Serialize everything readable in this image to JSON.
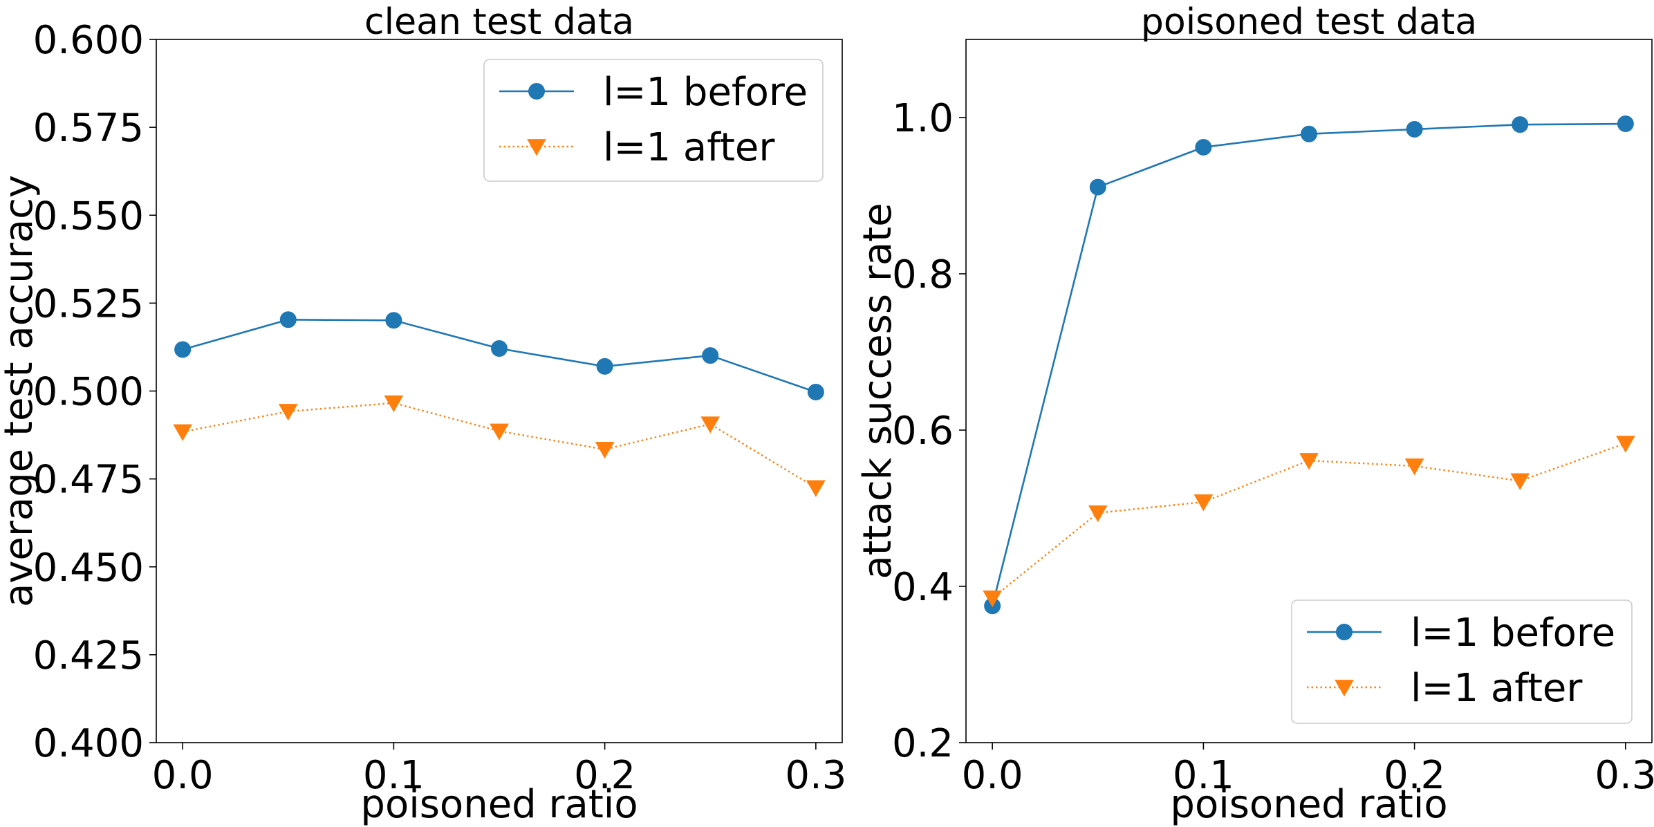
{
  "chart_data": [
    {
      "type": "line",
      "title": "clean test data",
      "xlabel": "poisoned ratio",
      "ylabel": "average test accuracy",
      "xlim": [
        -0.0125,
        0.3125
      ],
      "ylim": [
        0.4,
        0.6
      ],
      "x_ticks": [
        0.0,
        0.1,
        0.2,
        0.3
      ],
      "x_tick_labels": [
        "0.0",
        "0.1",
        "0.2",
        "0.3"
      ],
      "y_ticks": [
        0.4,
        0.425,
        0.45,
        0.475,
        0.5,
        0.525,
        0.55,
        0.575,
        0.6
      ],
      "y_tick_labels": [
        "0.400",
        "0.425",
        "0.450",
        "0.475",
        "0.500",
        "0.525",
        "0.550",
        "0.575",
        "0.600"
      ],
      "legend_position": "upper right",
      "x": [
        0.0,
        0.05,
        0.1,
        0.15,
        0.2,
        0.25,
        0.3
      ],
      "series": [
        {
          "name": "l=1 before",
          "color": "#1f77b4",
          "marker": "circle",
          "linestyle": "solid",
          "values": [
            0.5118,
            0.5203,
            0.5201,
            0.5121,
            0.507,
            0.5101,
            0.4997
          ]
        },
        {
          "name": "l=1 after",
          "color": "#ff7f0e",
          "marker": "triangle-down",
          "linestyle": "dotted",
          "values": [
            0.4884,
            0.4942,
            0.4966,
            0.4886,
            0.4834,
            0.4906,
            0.4725
          ]
        }
      ]
    },
    {
      "type": "line",
      "title": "poisoned test data",
      "xlabel": "poisoned ratio",
      "ylabel": "attack success rate",
      "xlim": [
        -0.0125,
        0.3125
      ],
      "ylim": [
        0.2,
        1.1
      ],
      "x_ticks": [
        0.0,
        0.1,
        0.2,
        0.3
      ],
      "x_tick_labels": [
        "0.0",
        "0.1",
        "0.2",
        "0.3"
      ],
      "y_ticks": [
        0.2,
        0.4,
        0.6,
        0.8,
        1.0
      ],
      "y_tick_labels": [
        "0.2",
        "0.4",
        "0.6",
        "0.8",
        "1.0"
      ],
      "legend_position": "lower right",
      "x": [
        0.0,
        0.05,
        0.1,
        0.15,
        0.2,
        0.25,
        0.3
      ],
      "series": [
        {
          "name": "l=1 before",
          "color": "#1f77b4",
          "marker": "circle",
          "linestyle": "solid",
          "values": [
            0.375,
            0.911,
            0.962,
            0.979,
            0.985,
            0.991,
            0.992
          ]
        },
        {
          "name": "l=1 after",
          "color": "#ff7f0e",
          "marker": "triangle-down",
          "linestyle": "dotted",
          "values": [
            0.385,
            0.494,
            0.508,
            0.561,
            0.554,
            0.535,
            0.583
          ]
        }
      ]
    }
  ]
}
